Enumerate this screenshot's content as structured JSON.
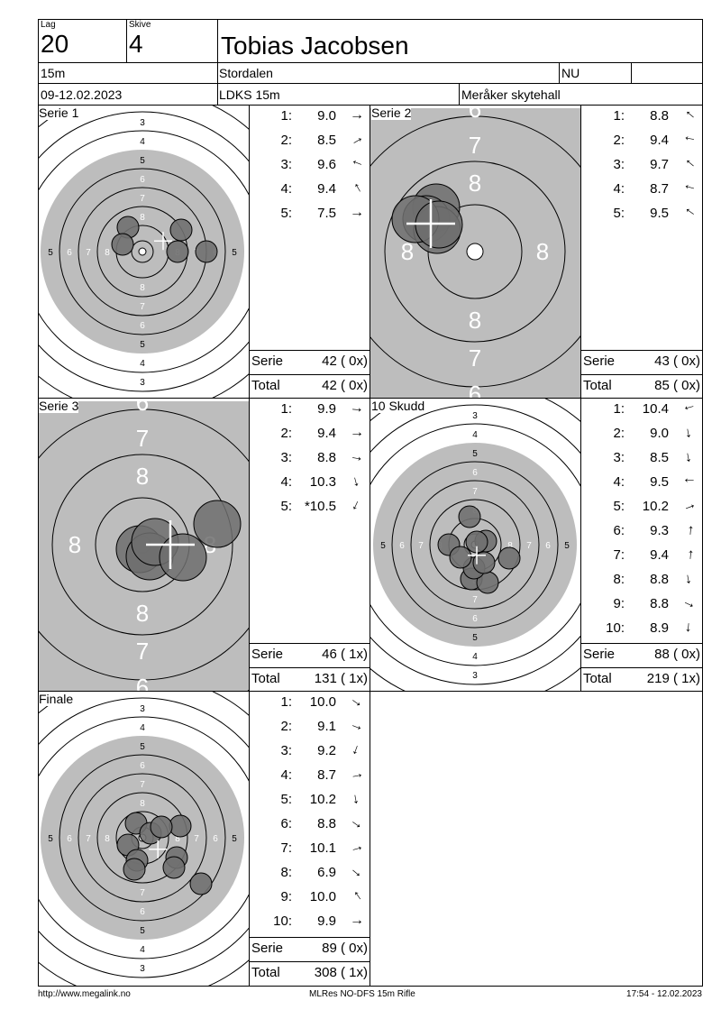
{
  "header": {
    "lag_label": "Lag",
    "lag_value": "20",
    "skive_label": "Skive",
    "skive_value": "4",
    "name": "Tobias Jacobsen",
    "distance": "15m",
    "club": "Stordalen",
    "class": "NU",
    "date": "09-12.02.2023",
    "competition": "LDKS 15m",
    "venue": "Meråker skytehall"
  },
  "panels": [
    {
      "title": "Serie 1",
      "shots": [
        {
          "n": "1:",
          "v": "9.0",
          "arrow": "→",
          "rot": 0
        },
        {
          "n": "2:",
          "v": "8.5",
          "arrow": "→",
          "rot": -30
        },
        {
          "n": "3:",
          "v": "9.6",
          "arrow": "→",
          "rot": 200
        },
        {
          "n": "4:",
          "v": "9.4",
          "arrow": "→",
          "rot": 240
        },
        {
          "n": "5:",
          "v": "7.5",
          "arrow": "→",
          "rot": 0
        }
      ],
      "serie_label": "Serie",
      "serie_value": "42 ( 0x)",
      "total_label": "Total",
      "total_value": "42 ( 0x)"
    },
    {
      "title": "Serie 2",
      "shots": [
        {
          "n": "1:",
          "v": "8.8",
          "arrow": "→",
          "rot": 220
        },
        {
          "n": "2:",
          "v": "9.4",
          "arrow": "→",
          "rot": 190
        },
        {
          "n": "3:",
          "v": "9.7",
          "arrow": "→",
          "rot": 220
        },
        {
          "n": "4:",
          "v": "8.7",
          "arrow": "→",
          "rot": 195
        },
        {
          "n": "5:",
          "v": "9.5",
          "arrow": "→",
          "rot": 215
        }
      ],
      "serie_label": "Serie",
      "serie_value": "43 ( 0x)",
      "total_label": "Total",
      "total_value": "85 ( 0x)"
    },
    {
      "title": "Serie 3",
      "shots": [
        {
          "n": "1:",
          "v": "9.9",
          "arrow": "→",
          "rot": 5
        },
        {
          "n": "2:",
          "v": "9.4",
          "arrow": "→",
          "rot": 0
        },
        {
          "n": "3:",
          "v": "8.8",
          "arrow": "→",
          "rot": 10
        },
        {
          "n": "4:",
          "v": "10.3",
          "arrow": "→",
          "rot": 75
        },
        {
          "n": "5:",
          "v": "*10.5",
          "arrow": "→",
          "rot": 115
        }
      ],
      "serie_label": "Serie",
      "serie_value": "46 ( 1x)",
      "total_label": "Total",
      "total_value": "131 ( 1x)"
    },
    {
      "title": "10 Skudd",
      "shots": [
        {
          "n": "1:",
          "v": "10.4",
          "arrow": "→",
          "rot": 165
        },
        {
          "n": "2:",
          "v": "9.0",
          "arrow": "→",
          "rot": 80
        },
        {
          "n": "3:",
          "v": "8.5",
          "arrow": "→",
          "rot": 80
        },
        {
          "n": "4:",
          "v": "9.5",
          "arrow": "→",
          "rot": 180
        },
        {
          "n": "5:",
          "v": "10.2",
          "arrow": "→",
          "rot": -20
        },
        {
          "n": "6:",
          "v": "9.3",
          "arrow": "→",
          "rot": 275
        },
        {
          "n": "7:",
          "v": "9.4",
          "arrow": "→",
          "rot": 275
        },
        {
          "n": "8:",
          "v": "8.8",
          "arrow": "→",
          "rot": 80
        },
        {
          "n": "9:",
          "v": "8.8",
          "arrow": "→",
          "rot": 25
        },
        {
          "n": "10:",
          "v": "8.9",
          "arrow": "→",
          "rot": 95
        }
      ],
      "serie_label": "Serie",
      "serie_value": "88 ( 0x)",
      "total_label": "Total",
      "total_value": "219 ( 1x)"
    },
    {
      "title": "Finale",
      "shots": [
        {
          "n": "1:",
          "v": "10.0",
          "arrow": "→",
          "rot": 35
        },
        {
          "n": "2:",
          "v": "9.1",
          "arrow": "→",
          "rot": 20
        },
        {
          "n": "3:",
          "v": "9.2",
          "arrow": "→",
          "rot": 110
        },
        {
          "n": "4:",
          "v": "8.7",
          "arrow": "→",
          "rot": -10
        },
        {
          "n": "5:",
          "v": "10.2",
          "arrow": "→",
          "rot": 80
        },
        {
          "n": "6:",
          "v": "8.8",
          "arrow": "→",
          "rot": 35
        },
        {
          "n": "7:",
          "v": "10.1",
          "arrow": "→",
          "rot": -15
        },
        {
          "n": "8:",
          "v": "6.9",
          "arrow": "→",
          "rot": 40
        },
        {
          "n": "9:",
          "v": "10.0",
          "arrow": "→",
          "rot": 235
        },
        {
          "n": "10:",
          "v": "9.9",
          "arrow": "→",
          "rot": 0
        }
      ],
      "serie_label": "Serie",
      "serie_value": "89 ( 0x)",
      "total_label": "Total",
      "total_value": "308 ( 1x)"
    }
  ],
  "targets": {
    "full": {
      "ring_labels": [
        "3",
        "4",
        "5",
        "6",
        "7",
        "8"
      ],
      "side_labels": [
        "5",
        "6",
        "7",
        "8",
        "8",
        "7",
        "6",
        "5"
      ]
    },
    "zoom": {
      "ring_labels": [
        "6",
        "7",
        "8",
        "8",
        "7",
        "6"
      ],
      "side_labels": [
        "8",
        "8"
      ]
    }
  },
  "footer": {
    "left": "http://www.megalink.no",
    "center": "MLRes NO-DFS 15m Rifle",
    "right": "17:54 - 12.02.2023"
  }
}
